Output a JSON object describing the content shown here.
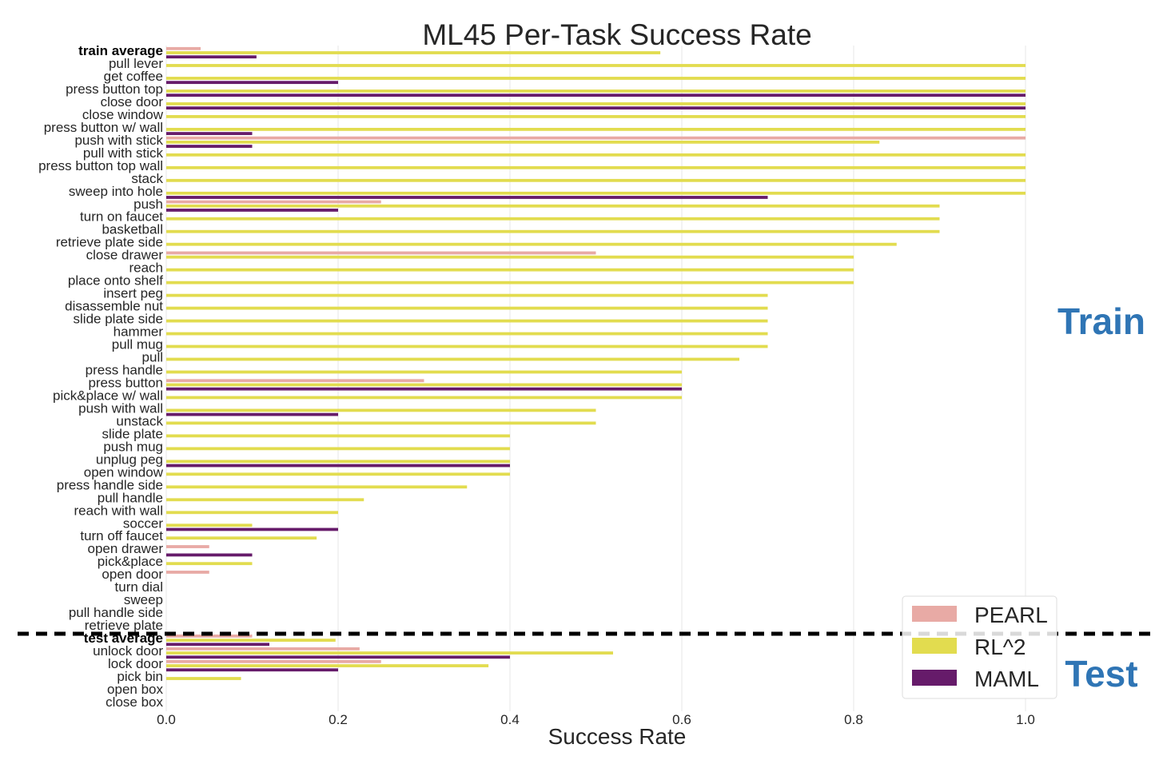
{
  "chart_data": {
    "type": "bar",
    "orientation": "horizontal",
    "title": "ML45 Per-Task Success Rate",
    "xlabel": "Success Rate",
    "ylabel": "",
    "xlim": [
      0,
      1.0
    ],
    "xticks": [
      "0.0",
      "0.2",
      "0.4",
      "0.6",
      "0.8",
      "1.0"
    ],
    "grid": "vertical",
    "legend_position": "bottom-right",
    "bold_categories": [
      "train average",
      "test average"
    ],
    "section_labels": {
      "train": "Train",
      "test": "Test"
    },
    "categories": [
      "train average",
      "pull lever",
      "get coffee",
      "press button top",
      "close door",
      "close window",
      "press button w/ wall",
      "push with stick",
      "pull with stick",
      "press button top wall",
      "stack",
      "sweep into hole",
      "push",
      "turn on faucet",
      "basketball",
      "retrieve plate side",
      "close drawer",
      "reach",
      "place onto shelf",
      "insert peg",
      "disassemble nut",
      "slide plate side",
      "hammer",
      "pull mug",
      "pull",
      "press handle",
      "press button",
      "pick&place w/ wall",
      "push with wall",
      "unstack",
      "slide plate",
      "push mug",
      "unplug peg",
      "open window",
      "press handle side",
      "pull handle",
      "reach with wall",
      "soccer",
      "turn off faucet",
      "open drawer",
      "pick&place",
      "open door",
      "turn dial",
      "sweep",
      "pull handle side",
      "retrieve plate",
      "test average",
      "unlock door",
      "lock door",
      "pick bin",
      "open box",
      "close box"
    ],
    "series": [
      {
        "name": "PEARL",
        "color": "#e8aaa5",
        "values": [
          0.04,
          0,
          0,
          0,
          0,
          0,
          0,
          1.0,
          0,
          0,
          0,
          0,
          0.25,
          0,
          0,
          0,
          0.5,
          0,
          0,
          0,
          0,
          0,
          0,
          0,
          0,
          0,
          0.3,
          0,
          0,
          0,
          0,
          0,
          0,
          0,
          0,
          0,
          0,
          0,
          0,
          0.05,
          0,
          0.05,
          0,
          0,
          0,
          0,
          0.1,
          0.225,
          0.25,
          0,
          0,
          0
        ]
      },
      {
        "name": "RL^2",
        "color": "#e2dc4f",
        "values": [
          0.575,
          1.0,
          1.0,
          1.0,
          1.0,
          1.0,
          1.0,
          0.83,
          1.0,
          1.0,
          1.0,
          1.0,
          0.9,
          0.9,
          0.9,
          0.85,
          0.8,
          0.8,
          0.8,
          0.7,
          0.7,
          0.7,
          0.7,
          0.7,
          0.667,
          0.6,
          0.6,
          0.6,
          0.5,
          0.5,
          0.4,
          0.4,
          0.4,
          0.4,
          0.35,
          0.23,
          0.2,
          0.1,
          0.175,
          0,
          0.1,
          0,
          0,
          0,
          0,
          0,
          0.197,
          0.52,
          0.375,
          0.087,
          0,
          0
        ]
      },
      {
        "name": "MAML",
        "color": "#661b6a",
        "values": [
          0.105,
          0,
          0.2,
          1.0,
          1.0,
          0,
          0.1,
          0.1,
          0,
          0,
          0,
          0.7,
          0.2,
          0,
          0,
          0,
          0,
          0,
          0,
          0,
          0,
          0,
          0,
          0,
          0,
          0,
          0.6,
          0,
          0.2,
          0,
          0,
          0,
          0.4,
          0,
          0,
          0,
          0,
          0.2,
          0,
          0.1,
          0,
          0,
          0,
          0,
          0,
          0,
          0.12,
          0.4,
          0.2,
          0,
          0,
          0
        ]
      }
    ]
  }
}
